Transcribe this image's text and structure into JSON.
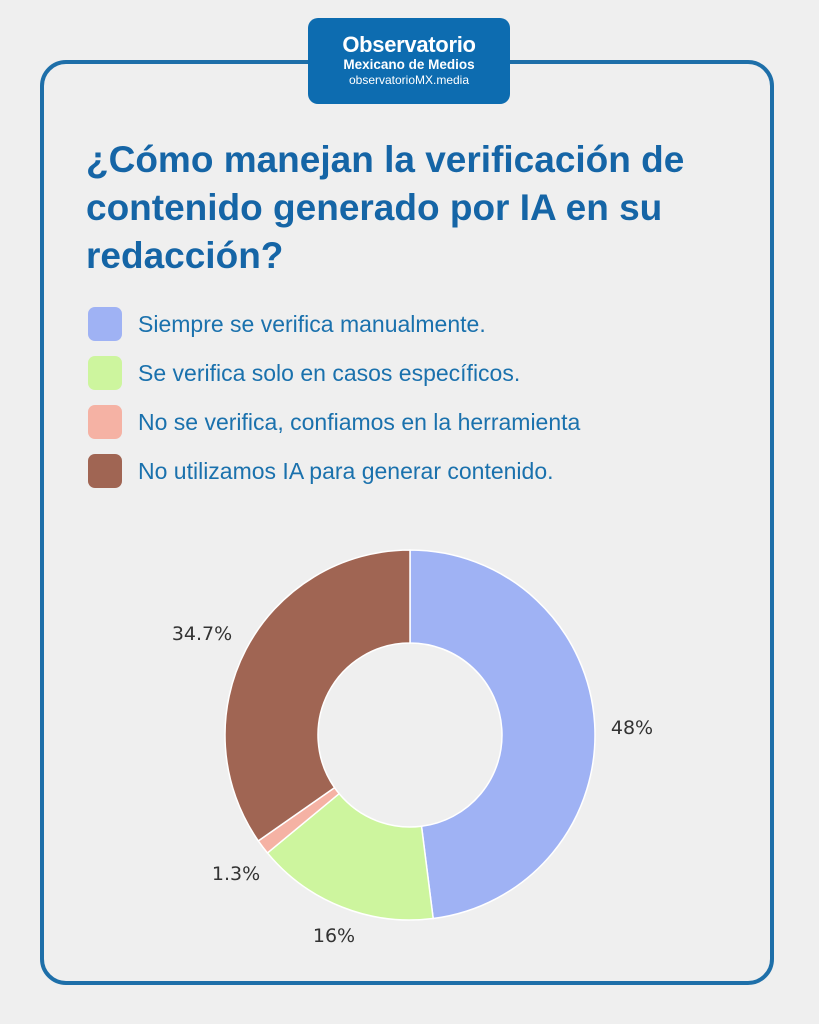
{
  "logo": {
    "line1": "Observatorio",
    "line2": "Mexicano de Medios",
    "line3": "observatorioMX.media"
  },
  "chart_data": {
    "type": "pie",
    "title": "¿Cómo manejan la verificación de contenido generado por IA en su redacción?",
    "legend_placement": "top",
    "categories": [
      "Siempre se verifica manualmente.",
      "Se verifica solo en casos específicos.",
      "No se verifica, confiamos en la herramienta",
      "No utilizamos IA para generar contenido."
    ],
    "values": [
      48,
      16,
      1.3,
      34.7
    ],
    "value_labels": [
      "48%",
      "16%",
      "1.3%",
      "34.7%"
    ],
    "colors": [
      "#9fb2f4",
      "#cdf59e",
      "#f5b2a4",
      "#a06553"
    ]
  }
}
